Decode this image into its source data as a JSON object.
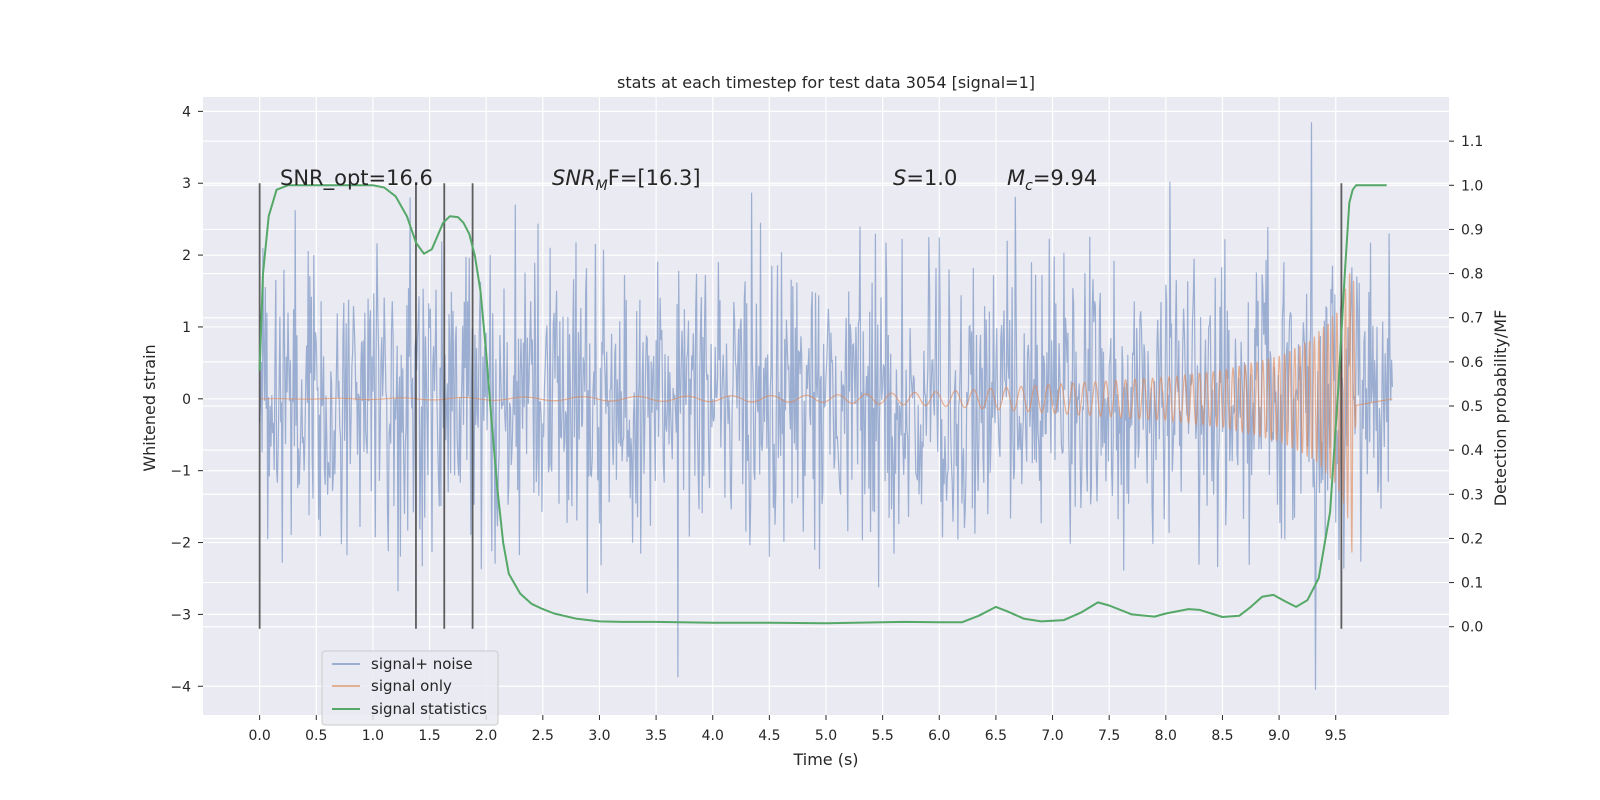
{
  "chart_data": {
    "type": "line",
    "title": "stats at each timestep for test data 3054 [signal=1]",
    "xlabel": "Time (s)",
    "ylabel_left": "Whitened strain",
    "ylabel_right": "Detection probability/MF",
    "xlim": [
      -0.5,
      10.5
    ],
    "ylim_left": [
      -4.4,
      4.2
    ],
    "ylim_right": [
      -0.2,
      1.2
    ],
    "x_ticks": [
      0.0,
      0.5,
      1.0,
      1.5,
      2.0,
      2.5,
      3.0,
      3.5,
      4.0,
      4.5,
      5.0,
      5.5,
      6.0,
      6.5,
      7.0,
      7.5,
      8.0,
      8.5,
      9.0,
      9.5
    ],
    "x_tick_labels": [
      "0.0",
      "0.5",
      "1.0",
      "1.5",
      "2.0",
      "2.5",
      "3.0",
      "3.5",
      "4.0",
      "4.5",
      "5.0",
      "5.5",
      "6.0",
      "6.5",
      "7.0",
      "7.5",
      "8.0",
      "8.5",
      "9.0",
      "9.5"
    ],
    "y_ticks_left": [
      -4,
      -3,
      -2,
      -1,
      0,
      1,
      2,
      3,
      4
    ],
    "y_tick_labels_left": [
      "−4",
      "−3",
      "−2",
      "−1",
      "0",
      "1",
      "2",
      "3",
      "4"
    ],
    "y_ticks_right": [
      0.0,
      0.1,
      0.2,
      0.3,
      0.4,
      0.5,
      0.6,
      0.7,
      0.8,
      0.9,
      1.0,
      1.1
    ],
    "y_tick_labels_right": [
      "0.0",
      "0.1",
      "0.2",
      "0.3",
      "0.4",
      "0.5",
      "0.6",
      "0.7",
      "0.8",
      "0.9",
      "1.0",
      "1.1"
    ],
    "grid": true,
    "legend_position": "lower-left",
    "series": [
      {
        "name": "signal+ noise",
        "color": "#4c72b0",
        "axis": "left",
        "kind": "noise",
        "x_range": [
          0.0,
          10.0
        ],
        "typical_abs": 1.1,
        "min": -4.05,
        "max": 3.85
      },
      {
        "name": "signal only",
        "color": "#dd8452",
        "axis": "left",
        "kind": "chirp",
        "x_range": [
          0.0,
          9.68
        ],
        "envelope": [
          [
            0.0,
            0.0
          ],
          [
            5.0,
            0.05
          ],
          [
            6.0,
            0.1
          ],
          [
            7.0,
            0.2
          ],
          [
            8.0,
            0.3
          ],
          [
            8.5,
            0.4
          ],
          [
            9.0,
            0.6
          ],
          [
            9.3,
            0.85
          ],
          [
            9.5,
            1.2
          ],
          [
            9.6,
            1.6
          ],
          [
            9.65,
            2.3
          ],
          [
            9.68,
            0.1
          ]
        ],
        "max": 1.75,
        "min": -2.55
      },
      {
        "name": "signal statistics",
        "color": "#55a868",
        "axis": "right",
        "x": [
          0.0,
          0.03,
          0.08,
          0.15,
          0.25,
          0.4,
          0.6,
          0.8,
          1.0,
          1.1,
          1.2,
          1.3,
          1.38,
          1.45,
          1.52,
          1.57,
          1.62,
          1.68,
          1.75,
          1.8,
          1.85,
          1.9,
          1.95,
          2.0,
          2.05,
          2.1,
          2.15,
          2.2,
          2.3,
          2.4,
          2.5,
          2.6,
          2.8,
          3.0,
          3.2,
          3.5,
          4.0,
          4.5,
          5.0,
          5.5,
          5.7,
          6.0,
          6.2,
          6.35,
          6.5,
          6.6,
          6.75,
          6.9,
          7.1,
          7.25,
          7.4,
          7.5,
          7.7,
          7.9,
          8.0,
          8.2,
          8.3,
          8.5,
          8.65,
          8.75,
          8.85,
          8.95,
          9.05,
          9.15,
          9.25,
          9.35,
          9.45,
          9.52,
          9.58,
          9.62,
          9.65,
          9.68,
          9.72,
          9.8,
          9.9,
          9.95
        ],
        "values": [
          0.58,
          0.8,
          0.93,
          0.99,
          1.0,
          1.0,
          1.0,
          1.0,
          1.0,
          0.995,
          0.975,
          0.93,
          0.87,
          0.845,
          0.855,
          0.885,
          0.915,
          0.93,
          0.928,
          0.915,
          0.89,
          0.84,
          0.76,
          0.62,
          0.46,
          0.31,
          0.19,
          0.12,
          0.075,
          0.052,
          0.04,
          0.03,
          0.018,
          0.012,
          0.011,
          0.011,
          0.009,
          0.009,
          0.008,
          0.01,
          0.011,
          0.01,
          0.01,
          0.025,
          0.045,
          0.035,
          0.018,
          0.012,
          0.015,
          0.032,
          0.055,
          0.048,
          0.028,
          0.023,
          0.03,
          0.04,
          0.038,
          0.022,
          0.025,
          0.045,
          0.068,
          0.072,
          0.058,
          0.045,
          0.06,
          0.11,
          0.26,
          0.53,
          0.8,
          0.96,
          0.99,
          1.0,
          1.0,
          1.0,
          1.0,
          1.0
        ]
      }
    ],
    "vertical_markers": [
      {
        "x": 0.0,
        "y_range": [
          -3.2,
          3.0
        ]
      },
      {
        "x": 1.38,
        "y_range": [
          -3.2,
          3.0
        ]
      },
      {
        "x": 1.63,
        "y_range": [
          -3.2,
          3.0
        ]
      },
      {
        "x": 1.88,
        "y_range": [
          -3.2,
          3.0
        ]
      },
      {
        "x": 9.55,
        "y_range": [
          -3.2,
          3.0
        ]
      }
    ],
    "annotations": [
      {
        "id": "snr-opt",
        "text": "SNR_opt=16.6",
        "x": 0.2,
        "y": 3.05
      },
      {
        "id": "snr-mf",
        "base": "SNR",
        "sub": "M",
        "rest": "F=[16.3]",
        "x": 2.6,
        "y": 3.05
      },
      {
        "id": "s-value",
        "base": "S",
        "sub": "",
        "rest": "=1.0",
        "x": 5.6,
        "y": 3.05
      },
      {
        "id": "mc-value",
        "base": "M",
        "sub": "c",
        "rest": "=9.94",
        "x": 6.6,
        "y": 3.05
      }
    ]
  }
}
